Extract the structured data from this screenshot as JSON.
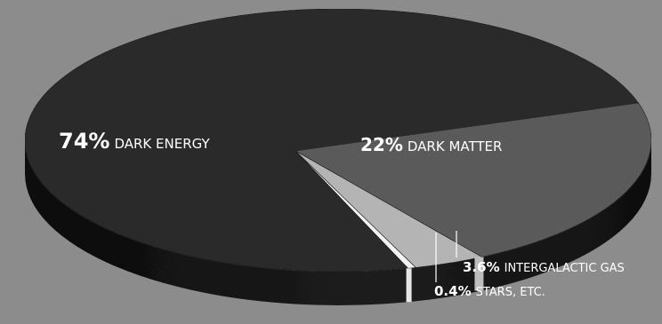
{
  "chart_data": {
    "type": "pie",
    "style": "3d-tilted",
    "title": "",
    "slices": [
      {
        "pct": "74%",
        "name": "DARK ENERGY",
        "value": 74.0,
        "color": "#2c2c2c"
      },
      {
        "pct": "22%",
        "name": "DARK MATTER",
        "value": 22.0,
        "color": "#5e5e5e"
      },
      {
        "pct": "3.6%",
        "name": "INTERGALACTIC GAS",
        "value": 3.6,
        "color": "#b4b4b4"
      },
      {
        "pct": "0.4%",
        "name": "STARS, ETC.",
        "value": 0.4,
        "color": "#f2f2f2"
      }
    ],
    "colors": {
      "background": "#8c8c8c",
      "label": "#ffffff",
      "rim_dark": "#141414"
    }
  }
}
